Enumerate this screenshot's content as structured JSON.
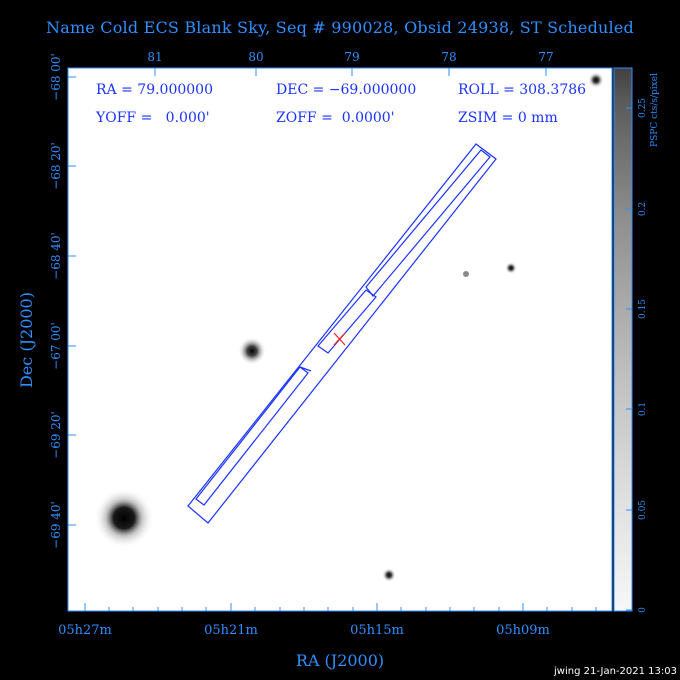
{
  "title": "Name Cold ECS Blank Sky, Seq # 990028, Obsid 24938, ST Scheduled",
  "info": {
    "ra": "RA = 79.000000",
    "dec": "DEC = −69.000000",
    "roll": "ROLL = 308.3786",
    "yoff": "YOFF =   0.000'",
    "zoff": "ZOFF =  0.0000'",
    "zsim": "ZSIM = 0 mm"
  },
  "axes": {
    "xlabel": "RA (J2000)",
    "ylabel": "Dec (J2000)",
    "bottom_ticks": [
      "05h27m",
      "05h21m",
      "05h15m",
      "05h09m"
    ],
    "top_ticks": [
      "81",
      "80",
      "79",
      "78",
      "77"
    ],
    "left_ticks": [
      "−68 00'",
      "−68 20'",
      "−68 40'",
      "−67 00'",
      "−69 20'",
      "−69 40'"
    ]
  },
  "colorbar": {
    "label": "PSPC cts/s/pixel",
    "ticks": [
      "0",
      "0.05",
      "0.1",
      "0.15",
      "0.2",
      "0.25"
    ],
    "gradient": [
      "#404040",
      "#f7f7f7"
    ]
  },
  "footer": "jwing 21-Jan-2021 13:03",
  "colors": {
    "axis": "#2f8fff",
    "overlay": "#1a33ff",
    "marker": "#ff2020"
  }
}
